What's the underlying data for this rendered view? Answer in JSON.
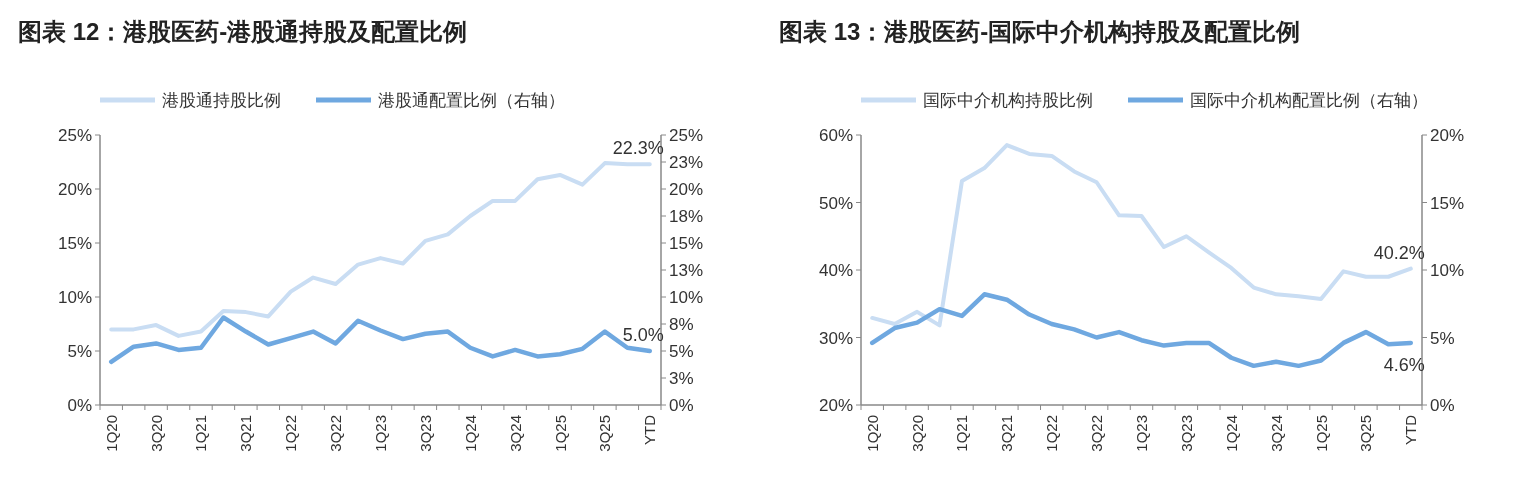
{
  "chart_data": [
    {
      "type": "line",
      "title": "图表 12：港股医药-港股通持股及配置比例",
      "categories": [
        "1Q20",
        null,
        "3Q20",
        null,
        "1Q21",
        null,
        "3Q21",
        null,
        "1Q22",
        null,
        "3Q22",
        null,
        "1Q23",
        null,
        "3Q23",
        null,
        "1Q24",
        null,
        "3Q24",
        null,
        "1Q25",
        null,
        "3Q25",
        null,
        "YTD"
      ],
      "series": [
        {
          "name": "港股通持股比例",
          "color": "#c9ddf3",
          "values": [
            7.0,
            7.0,
            7.4,
            6.4,
            6.8,
            8.7,
            8.6,
            8.2,
            10.5,
            11.8,
            11.2,
            13.0,
            13.6,
            13.1,
            15.2,
            15.8,
            17.5,
            18.9,
            18.9,
            20.9,
            21.3,
            20.4,
            22.4,
            22.3,
            22.3
          ],
          "value_labels": [
            null,
            null,
            null,
            null,
            null,
            null,
            null,
            null,
            null,
            null,
            null,
            null,
            null,
            null,
            null,
            null,
            null,
            null,
            null,
            null,
            null,
            null,
            null,
            null,
            "22.3%"
          ]
        },
        {
          "name": "港股通配置比例（右轴）",
          "color": "#6fa8e0",
          "axis": "y2",
          "values": [
            4.0,
            5.4,
            5.7,
            5.1,
            5.3,
            8.1,
            6.8,
            5.6,
            6.2,
            6.8,
            5.7,
            7.8,
            6.9,
            6.1,
            6.6,
            6.8,
            5.3,
            4.5,
            5.1,
            4.5,
            4.7,
            5.2,
            6.8,
            5.3,
            5.0
          ],
          "value_labels": [
            null,
            null,
            null,
            null,
            null,
            null,
            null,
            null,
            null,
            null,
            null,
            null,
            null,
            null,
            null,
            null,
            null,
            null,
            null,
            null,
            null,
            null,
            null,
            null,
            "5.0%"
          ]
        }
      ],
      "ylim": [
        0,
        25
      ],
      "yticks": [
        {
          "value": 0,
          "label": "0%"
        },
        {
          "value": 5,
          "label": "5%"
        },
        {
          "value": 10,
          "label": "10%"
        },
        {
          "value": 15,
          "label": "15%"
        },
        {
          "value": 20,
          "label": "20%"
        },
        {
          "value": 25,
          "label": "25%"
        }
      ],
      "y2lim": [
        0,
        25
      ],
      "y2ticks": [
        {
          "value": 0,
          "label": "0%"
        },
        {
          "value": 2.5,
          "label": "3%"
        },
        {
          "value": 5,
          "label": "5%"
        },
        {
          "value": 7.5,
          "label": "8%"
        },
        {
          "value": 10,
          "label": "10%"
        },
        {
          "value": 12.5,
          "label": "13%"
        },
        {
          "value": 15,
          "label": "15%"
        },
        {
          "value": 17.5,
          "label": "18%"
        },
        {
          "value": 20,
          "label": "20%"
        },
        {
          "value": 22.5,
          "label": "23%"
        },
        {
          "value": 25,
          "label": "25%"
        }
      ],
      "legend": "top",
      "grid": false
    },
    {
      "type": "line",
      "title": "图表 13：港股医药-国际中介机构持股及配置比例",
      "categories": [
        "1Q20",
        null,
        "3Q20",
        null,
        "1Q21",
        null,
        "3Q21",
        null,
        "1Q22",
        null,
        "3Q22",
        null,
        "1Q23",
        null,
        "3Q23",
        null,
        "1Q24",
        null,
        "3Q24",
        null,
        "1Q25",
        null,
        "3Q25",
        null,
        "YTD"
      ],
      "series": [
        {
          "name": "国际中介机构持股比例",
          "color": "#c9ddf3",
          "values": [
            32.9,
            32.0,
            33.8,
            31.8,
            53.2,
            55.1,
            58.5,
            57.2,
            56.9,
            54.6,
            53.0,
            48.1,
            48.0,
            43.4,
            45.0,
            42.6,
            40.3,
            37.4,
            36.4,
            36.1,
            35.7,
            39.8,
            39.0,
            39.0,
            40.2
          ],
          "value_labels": [
            null,
            null,
            null,
            null,
            null,
            null,
            null,
            null,
            null,
            null,
            null,
            null,
            null,
            null,
            null,
            null,
            null,
            null,
            null,
            null,
            null,
            null,
            null,
            null,
            "40.2%"
          ]
        },
        {
          "name": "国际中介机构配置比例（右轴）",
          "color": "#6fa8e0",
          "axis": "y2",
          "values": [
            4.6,
            5.7,
            6.1,
            7.1,
            6.6,
            8.2,
            7.8,
            6.7,
            6.0,
            5.6,
            5.0,
            5.4,
            4.8,
            4.4,
            4.6,
            4.6,
            3.5,
            2.9,
            3.2,
            2.9,
            3.3,
            4.6,
            5.4,
            4.5,
            4.6
          ],
          "value_labels": [
            null,
            null,
            null,
            null,
            null,
            null,
            null,
            null,
            null,
            null,
            null,
            null,
            null,
            null,
            null,
            null,
            null,
            null,
            null,
            null,
            null,
            null,
            null,
            null,
            "4.6%"
          ]
        }
      ],
      "ylim": [
        20,
        60
      ],
      "yticks": [
        {
          "value": 20,
          "label": "20%"
        },
        {
          "value": 30,
          "label": "30%"
        },
        {
          "value": 40,
          "label": "40%"
        },
        {
          "value": 50,
          "label": "50%"
        },
        {
          "value": 60,
          "label": "60%"
        }
      ],
      "y2lim": [
        0,
        20
      ],
      "y2ticks": [
        {
          "value": 0,
          "label": "0%"
        },
        {
          "value": 5,
          "label": "5%"
        },
        {
          "value": 10,
          "label": "10%"
        },
        {
          "value": 15,
          "label": "15%"
        },
        {
          "value": 20,
          "label": "20%"
        }
      ],
      "legend": "top",
      "grid": false
    }
  ]
}
